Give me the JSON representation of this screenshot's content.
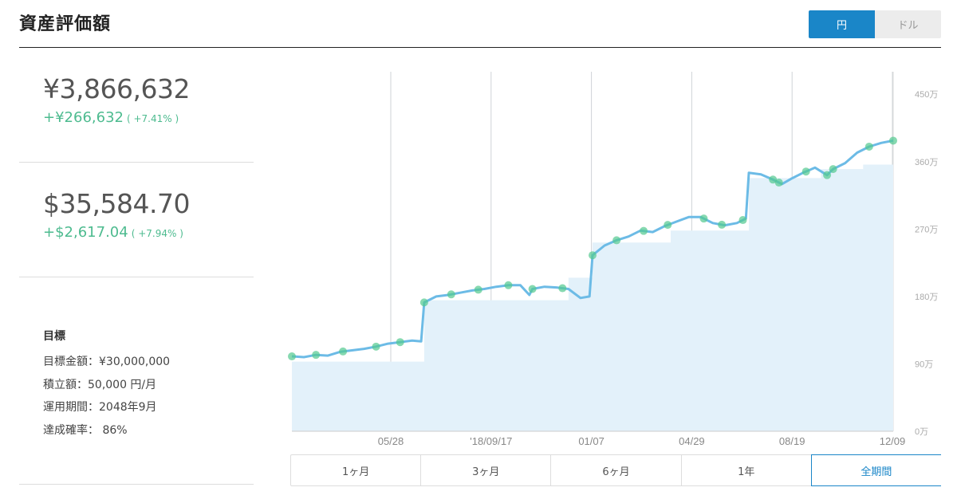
{
  "header": {
    "title": "資産評価額",
    "currency_toggle": [
      {
        "label": "円",
        "active": true
      },
      {
        "label": "ドル",
        "active": false
      }
    ]
  },
  "summary": {
    "jpy": {
      "value": "¥3,866,632",
      "gain": "+¥266,632",
      "gain_pct": "( +7.41% )"
    },
    "usd": {
      "value": "$35,584.70",
      "gain": "+$2,617.04",
      "gain_pct": "( +7.94% )"
    }
  },
  "goal": {
    "title": "目標",
    "lines": [
      "目標金額：¥30,000,000",
      "積立額：50,000 円/月",
      "運用期間：2048年9月",
      "達成確率： 86%"
    ]
  },
  "periods": [
    {
      "label": "1ヶ月",
      "active": false
    },
    {
      "label": "3ヶ月",
      "active": false
    },
    {
      "label": "6ヶ月",
      "active": false
    },
    {
      "label": "1年",
      "active": false
    },
    {
      "label": "全期間",
      "active": true
    }
  ],
  "colors": {
    "accent": "#1a86c8",
    "line": "#6cbbe6",
    "area": "#e3f1fa",
    "gain": "#4dbb8f",
    "marker": "#52c98e"
  },
  "chart_data": {
    "type": "line",
    "x_tick_labels": [
      "05/28",
      "'18/09/17",
      "01/07",
      "04/29",
      "08/19",
      "12/09"
    ],
    "y_tick_labels": [
      "0万",
      "90万",
      "180万",
      "270万",
      "360万",
      "450万"
    ],
    "ylim": [
      0,
      480
    ],
    "y_unit": "万",
    "grid_vertical": true,
    "series": [
      {
        "role": "valuation",
        "points": [
          [
            0,
            100
          ],
          [
            0.02,
            99
          ],
          [
            0.04,
            102
          ],
          [
            0.06,
            101
          ],
          [
            0.08,
            106
          ],
          [
            0.1,
            108
          ],
          [
            0.12,
            110
          ],
          [
            0.14,
            113
          ],
          [
            0.16,
            117
          ],
          [
            0.18,
            119
          ],
          [
            0.2,
            121
          ],
          [
            0.215,
            120
          ],
          [
            0.22,
            172
          ],
          [
            0.24,
            180
          ],
          [
            0.26,
            182
          ],
          [
            0.28,
            185
          ],
          [
            0.3,
            188
          ],
          [
            0.32,
            190
          ],
          [
            0.34,
            193
          ],
          [
            0.36,
            195
          ],
          [
            0.38,
            195
          ],
          [
            0.395,
            182
          ],
          [
            0.4,
            190
          ],
          [
            0.42,
            193
          ],
          [
            0.44,
            192
          ],
          [
            0.46,
            190
          ],
          [
            0.48,
            178
          ],
          [
            0.495,
            180
          ],
          [
            0.5,
            235
          ],
          [
            0.52,
            248
          ],
          [
            0.54,
            255
          ],
          [
            0.56,
            260
          ],
          [
            0.58,
            268
          ],
          [
            0.6,
            266
          ],
          [
            0.62,
            274
          ],
          [
            0.64,
            280
          ],
          [
            0.66,
            286
          ],
          [
            0.68,
            286
          ],
          [
            0.7,
            278
          ],
          [
            0.72,
            275
          ],
          [
            0.74,
            278
          ],
          [
            0.755,
            284
          ],
          [
            0.76,
            345
          ],
          [
            0.78,
            343
          ],
          [
            0.8,
            336
          ],
          [
            0.815,
            330
          ],
          [
            0.83,
            337
          ],
          [
            0.85,
            345
          ],
          [
            0.87,
            352
          ],
          [
            0.89,
            342
          ],
          [
            0.9,
            350
          ],
          [
            0.92,
            358
          ],
          [
            0.94,
            372
          ],
          [
            0.96,
            380
          ],
          [
            0.98,
            385
          ],
          [
            1,
            388
          ]
        ]
      },
      {
        "role": "contribution",
        "points": [
          [
            0,
            93
          ],
          [
            0.22,
            93
          ],
          [
            0.22,
            175
          ],
          [
            0.46,
            175
          ],
          [
            0.46,
            205
          ],
          [
            0.5,
            205
          ],
          [
            0.5,
            252
          ],
          [
            0.63,
            252
          ],
          [
            0.63,
            268
          ],
          [
            0.76,
            268
          ],
          [
            0.76,
            338
          ],
          [
            0.88,
            338
          ],
          [
            0.88,
            350
          ],
          [
            0.95,
            350
          ],
          [
            0.95,
            356
          ],
          [
            1,
            356
          ]
        ]
      }
    ],
    "markers_x": [
      0,
      0.04,
      0.085,
      0.14,
      0.18,
      0.22,
      0.265,
      0.31,
      0.36,
      0.4,
      0.45,
      0.5,
      0.54,
      0.585,
      0.625,
      0.685,
      0.715,
      0.75,
      0.8,
      0.81,
      0.855,
      0.89,
      0.9,
      0.96,
      1
    ]
  }
}
